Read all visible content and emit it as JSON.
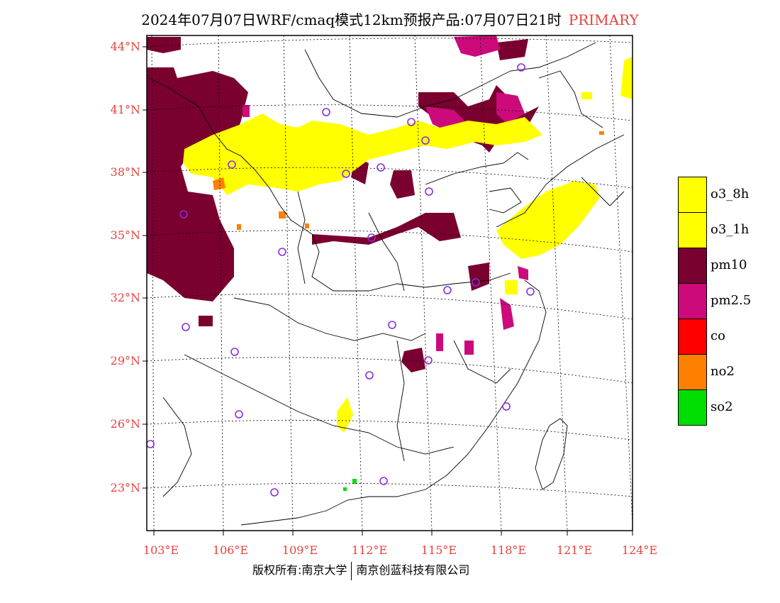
{
  "title": {
    "main": "2024年07月07日WRF/cmaq模式12km预报产品:07月07日21时",
    "tag": "PRIMARY"
  },
  "latitude_labels": [
    "44°N",
    "41°N",
    "38°N",
    "35°N",
    "32°N",
    "29°N",
    "26°N",
    "23°N"
  ],
  "longitude_labels": [
    "103°E",
    "106°E",
    "109°E",
    "112°E",
    "115°E",
    "118°E",
    "121°E",
    "124°E"
  ],
  "legend": [
    {
      "label": "o3_8h",
      "color": "#ffff00"
    },
    {
      "label": "o3_1h",
      "color": "#ffff00"
    },
    {
      "label": "pm10",
      "color": "#7a0030"
    },
    {
      "label": "pm2.5",
      "color": "#cc0a7a"
    },
    {
      "label": "co",
      "color": "#ff0000"
    },
    {
      "label": "no2",
      "color": "#ff7f00"
    },
    {
      "label": "so2",
      "color": "#00dd00"
    }
  ],
  "footer": {
    "left": "版权所有:南京大学",
    "right": "南京创蓝科技有限公司"
  },
  "colors": {
    "label_red": "#e8423c",
    "station_marker": "#8a2be2"
  }
}
